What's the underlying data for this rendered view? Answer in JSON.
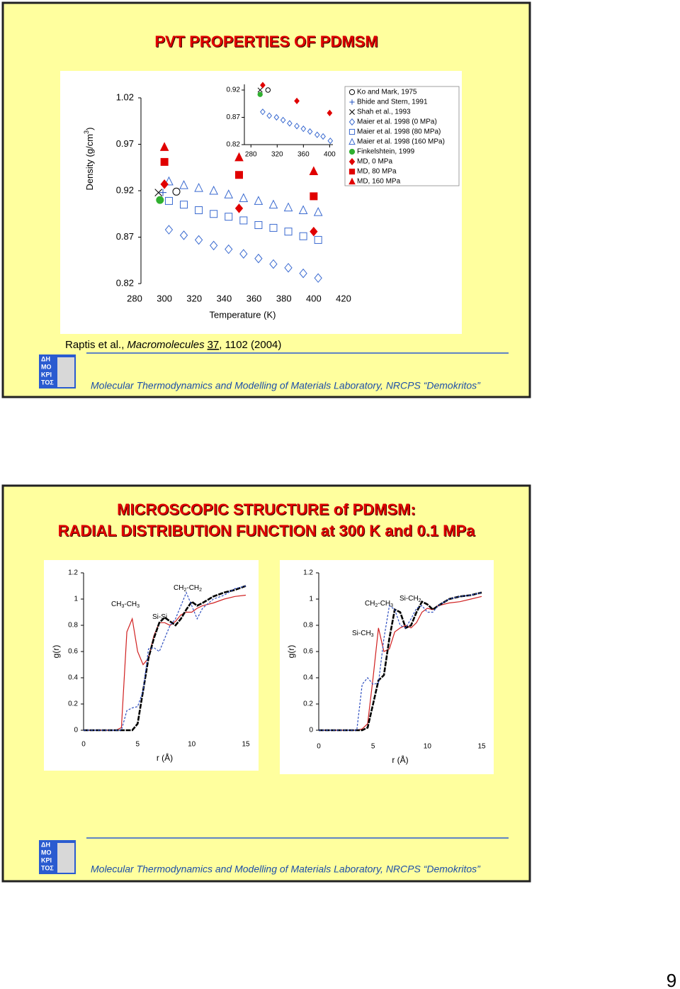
{
  "slides": [
    {
      "title": "PVT PROPERTIES OF PDMSM",
      "citation": {
        "authors": "Raptis et al.,",
        "journal": "Macromolecules",
        "volume": "37",
        "pages": ", 1102 (2004)"
      },
      "footer": "Molecular Thermodynamics and Modelling of Materials Laboratory, NRCPS “Demokritos”",
      "logo": [
        "ΔΗ",
        "ΜΟ",
        "ΚΡΙ",
        "ΤΟΣ"
      ]
    },
    {
      "title": [
        "MICROSCOPIC STRUCTURE of PDMSM:",
        "RADIAL DISTRIBUTION FUNCTION at 300 K and 0.1 MPa"
      ],
      "footer": "Molecular Thermodynamics and Modelling of Materials Laboratory, NRCPS “Demokritos”",
      "logo": [
        "ΔΗ",
        "ΜΟ",
        "ΚΡΙ",
        "ΤΟΣ"
      ]
    }
  ],
  "page_number": "9",
  "chart_data": [
    {
      "type": "scatter",
      "xlabel": "Temperature (K)",
      "ylabel": [
        "Density (g/cm",
        "3",
        ")"
      ],
      "xlim": [
        280,
        420
      ],
      "xticks": [
        280,
        300,
        320,
        340,
        360,
        380,
        400,
        420
      ],
      "ylim": [
        0.82,
        1.02
      ],
      "yticks": [
        0.82,
        0.87,
        0.92,
        0.97,
        1.02
      ],
      "legend": "right",
      "series": [
        {
          "name": "Ko and Mark, 1975",
          "marker": "circle",
          "filled": false,
          "color": "#000000",
          "x": [
            308
          ],
          "values": [
            0.919
          ]
        },
        {
          "name": "Bhide and Stern, 1991",
          "marker": "plus",
          "filled": false,
          "color": "#2050c0",
          "x": [
            299
          ],
          "values": [
            0.918
          ]
        },
        {
          "name": "Shah et al., 1993",
          "marker": "cross",
          "filled": false,
          "color": "#000000",
          "x": [
            296
          ],
          "values": [
            0.918
          ]
        },
        {
          "name": "Maier et al. 1998 (0 MPa)",
          "marker": "diamond",
          "filled": false,
          "color": "#3a6ad0",
          "x": [
            303,
            313,
            323,
            333,
            343,
            353,
            363,
            373,
            383,
            393,
            403
          ],
          "values": [
            0.878,
            0.872,
            0.867,
            0.861,
            0.857,
            0.852,
            0.847,
            0.841,
            0.837,
            0.831,
            0.826
          ]
        },
        {
          "name": "Maier et al. 1998 (80 MPa)",
          "marker": "square",
          "filled": false,
          "color": "#3a6ad0",
          "x": [
            303,
            313,
            323,
            333,
            343,
            353,
            363,
            373,
            383,
            393,
            403
          ],
          "values": [
            0.909,
            0.905,
            0.899,
            0.895,
            0.892,
            0.888,
            0.883,
            0.88,
            0.876,
            0.871,
            0.867
          ]
        },
        {
          "name": "Maier et al. 1998 (160 MPa)",
          "marker": "triangle",
          "filled": false,
          "color": "#3a6ad0",
          "x": [
            303,
            313,
            323,
            333,
            343,
            353,
            363,
            373,
            383,
            393,
            403
          ],
          "values": [
            0.93,
            0.926,
            0.923,
            0.92,
            0.916,
            0.912,
            0.909,
            0.905,
            0.902,
            0.899,
            0.897
          ]
        },
        {
          "name": "Finkelshtein, 1999",
          "marker": "circle",
          "filled": true,
          "color": "#30b030",
          "x": [
            297
          ],
          "values": [
            0.91
          ]
        },
        {
          "name": "MD, 0 MPa",
          "marker": "diamond",
          "filled": true,
          "color": "#e00000",
          "x": [
            300,
            350,
            400
          ],
          "values": [
            0.927,
            0.901,
            0.876
          ]
        },
        {
          "name": "MD, 80 MPa",
          "marker": "square",
          "filled": true,
          "color": "#e00000",
          "x": [
            300,
            350,
            400
          ],
          "values": [
            0.951,
            0.937,
            0.914
          ]
        },
        {
          "name": "MD, 160 MPa",
          "marker": "triangle",
          "filled": true,
          "color": "#e00000",
          "x": [
            300,
            350,
            400
          ],
          "values": [
            0.967,
            0.956,
            0.941
          ]
        }
      ]
    },
    {
      "type": "scatter",
      "xlim": [
        270,
        405
      ],
      "xticks": [
        280,
        320,
        360,
        400
      ],
      "ylim": [
        0.82,
        0.92
      ],
      "yticks": [
        0.82,
        0.87,
        0.92
      ],
      "series": [
        {
          "marker": "circle",
          "filled": false,
          "color": "#000000",
          "x": [
            306
          ],
          "values": [
            0.92
          ]
        },
        {
          "marker": "cross",
          "filled": false,
          "color": "#000000",
          "x": [
            294
          ],
          "values": [
            0.92
          ]
        },
        {
          "marker": "circle",
          "filled": true,
          "color": "#30b030",
          "x": [
            294
          ],
          "values": [
            0.912
          ]
        },
        {
          "marker": "diamond",
          "filled": false,
          "color": "#3a6ad0",
          "x": [
            298,
            308,
            319,
            329,
            339,
            350,
            360,
            370,
            381,
            390,
            401
          ],
          "values": [
            0.88,
            0.873,
            0.87,
            0.865,
            0.859,
            0.854,
            0.849,
            0.844,
            0.838,
            0.835,
            0.827
          ]
        },
        {
          "marker": "diamond",
          "filled": true,
          "color": "#e00000",
          "x": [
            298,
            350,
            400
          ],
          "values": [
            0.929,
            0.9,
            0.878
          ]
        }
      ]
    },
    {
      "type": "line",
      "xlabel": "r (Å)",
      "ylabel": "g(r)",
      "xlim": [
        0,
        15
      ],
      "xticks": [
        0,
        5,
        10,
        15
      ],
      "ylim": [
        0,
        1.2
      ],
      "yticks": [
        0,
        0.2,
        0.4,
        0.6,
        0.8,
        1,
        1.2
      ],
      "annotations": [
        [
          "CH",
          "3",
          "-CH",
          "3"
        ],
        [
          "Si-Si"
        ],
        [
          "CH",
          "2",
          "-CH",
          "2"
        ]
      ],
      "x": [
        0,
        1,
        2,
        3,
        3.5,
        4,
        4.5,
        5,
        5.5,
        6,
        6.5,
        7,
        7.5,
        8,
        8.5,
        9,
        9.5,
        10,
        10.5,
        11,
        12,
        13,
        14,
        15
      ],
      "series": [
        {
          "color": "#d02020",
          "linestyle": "solid",
          "values": [
            0,
            0,
            0,
            0,
            0.02,
            0.75,
            0.85,
            0.6,
            0.5,
            0.55,
            0.72,
            0.82,
            0.82,
            0.8,
            0.83,
            0.88,
            0.9,
            0.9,
            0.93,
            0.95,
            0.97,
            1.0,
            1.02,
            1.03
          ]
        },
        {
          "color": "#000000",
          "linestyle": "thick",
          "values": [
            0,
            0,
            0,
            0,
            0,
            0,
            0,
            0.05,
            0.3,
            0.55,
            0.7,
            0.82,
            0.86,
            0.83,
            0.8,
            0.85,
            0.92,
            0.98,
            0.95,
            0.97,
            1.02,
            1.05,
            1.07,
            1.1
          ]
        },
        {
          "color": "#3050c0",
          "linestyle": "dashed",
          "values": [
            0,
            0,
            0,
            0,
            0,
            0.15,
            0.17,
            0.18,
            0.3,
            0.62,
            0.63,
            0.6,
            0.7,
            0.8,
            0.85,
            0.95,
            1.05,
            0.95,
            0.85,
            0.93,
            1.0,
            1.03,
            1.08,
            1.1
          ]
        }
      ]
    },
    {
      "type": "line",
      "xlabel": "r (Å)",
      "ylabel": "g(r)",
      "xlim": [
        0,
        15
      ],
      "xticks": [
        0,
        5,
        10,
        15
      ],
      "ylim": [
        0,
        1.2
      ],
      "yticks": [
        0,
        0.2,
        0.4,
        0.6,
        0.8,
        1,
        1.2
      ],
      "annotations": [
        [
          "CH",
          "2",
          "-CH",
          "3"
        ],
        [
          "Si-CH",
          "2"
        ],
        [
          "Si-CH",
          "3"
        ]
      ],
      "x": [
        0,
        1,
        2,
        3,
        3.5,
        4,
        4.5,
        5,
        5.5,
        6,
        6.5,
        7,
        7.5,
        8,
        8.5,
        9,
        9.5,
        10,
        10.5,
        11,
        12,
        13,
        14,
        15
      ],
      "series": [
        {
          "color": "#d02020",
          "linestyle": "solid",
          "values": [
            0,
            0,
            0,
            0,
            0,
            0.01,
            0.05,
            0.4,
            0.78,
            0.6,
            0.62,
            0.75,
            0.78,
            0.8,
            0.78,
            0.82,
            0.9,
            0.93,
            0.92,
            0.95,
            0.97,
            0.98,
            1.0,
            1.02
          ]
        },
        {
          "color": "#000000",
          "linestyle": "thick",
          "values": [
            0,
            0,
            0,
            0,
            0,
            0,
            0.02,
            0.2,
            0.38,
            0.42,
            0.7,
            0.92,
            0.9,
            0.78,
            0.8,
            0.9,
            0.98,
            0.96,
            0.92,
            0.95,
            1.0,
            1.02,
            1.03,
            1.05
          ]
        },
        {
          "color": "#3050c0",
          "linestyle": "dashed",
          "values": [
            0,
            0,
            0,
            0,
            0,
            0.35,
            0.4,
            0.35,
            0.36,
            0.7,
            0.95,
            0.92,
            0.8,
            0.78,
            0.85,
            0.93,
            0.95,
            0.9,
            0.9,
            0.95,
            1.0,
            1.02,
            1.03,
            1.05
          ]
        }
      ]
    }
  ]
}
